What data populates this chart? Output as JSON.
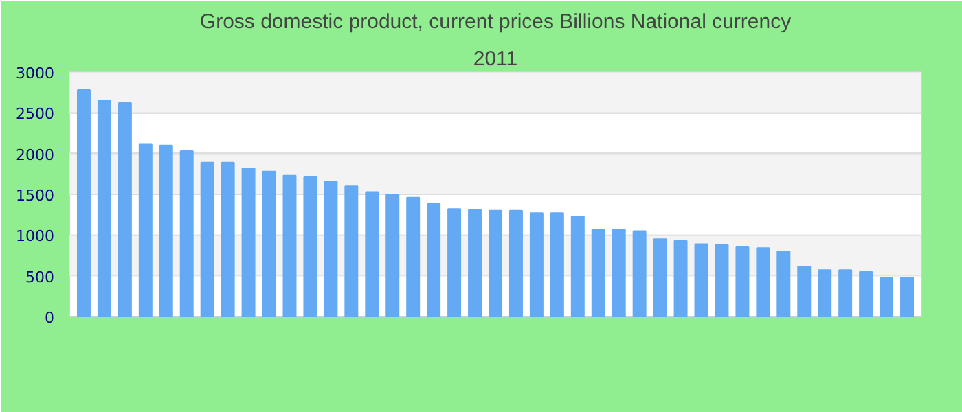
{
  "chart_data": {
    "type": "bar",
    "title": "Gross domestic product, current prices Billions National currency",
    "subtitle": "2011",
    "categories": [
      null,
      null,
      null,
      null,
      null,
      null,
      null,
      null,
      null,
      null,
      null,
      null,
      null,
      null,
      null,
      null,
      null,
      null,
      null,
      null,
      null,
      null,
      null,
      null,
      null,
      null,
      null,
      null,
      null,
      null,
      null,
      null,
      null,
      null,
      null,
      null,
      null,
      null,
      null,
      null,
      null
    ],
    "values": [
      2780,
      2650,
      2620,
      2120,
      2100,
      2030,
      1890,
      1890,
      1820,
      1780,
      1730,
      1710,
      1660,
      1600,
      1530,
      1500,
      1460,
      1390,
      1320,
      1310,
      1300,
      1300,
      1270,
      1270,
      1230,
      1070,
      1070,
      1050,
      950,
      930,
      890,
      880,
      860,
      840,
      800,
      610,
      570,
      570,
      550,
      480,
      480
    ],
    "color": "#63a9f4",
    "ylim": [
      0,
      3000
    ],
    "yticks": [
      0,
      500,
      1000,
      1500,
      2000,
      2500,
      3000
    ],
    "grid": "y"
  }
}
